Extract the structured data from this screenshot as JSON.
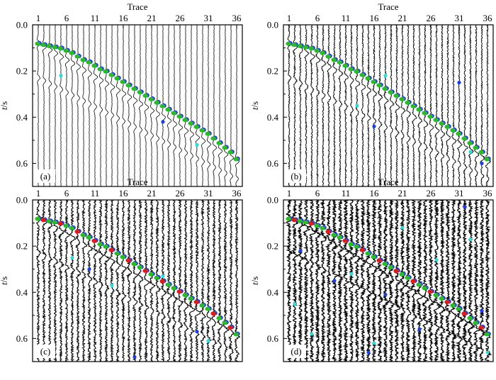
{
  "figure": {
    "panels_count": 4
  },
  "chart_data": [
    {
      "panel": "a",
      "type": "scatter",
      "label": "(a)",
      "xlabel": "Trace",
      "ylabel": "t/s",
      "xticks": [
        1,
        6,
        11,
        16,
        21,
        26,
        31,
        36
      ],
      "yticks": [
        0.0,
        0.2,
        0.4,
        0.6
      ],
      "ytick_labels": [
        "0.0",
        "0.2",
        "0.4",
        "0.6"
      ],
      "xlim": [
        0,
        37
      ],
      "ylim": [
        0.0,
        0.7
      ],
      "y_inverted": true,
      "x_axis_position": "top",
      "traces": 36,
      "noise_level": 0.08,
      "event": {
        "t0": 0.08,
        "slope": 0.0146
      },
      "second_event": {
        "t0": 0.23,
        "slope": 0.0125
      },
      "colors": {
        "trace": "#000000",
        "pick_primary": "#2db82d",
        "pick_secondary": "#1f3fd9",
        "outlier": "#38d7d7",
        "red": "#d62020"
      },
      "series": [
        {
          "name": "picks",
          "points": [
            {
              "x": 1,
              "y": 0.08
            },
            {
              "x": 2,
              "y": 0.085
            },
            {
              "x": 3,
              "y": 0.09
            },
            {
              "x": 4,
              "y": 0.095
            },
            {
              "x": 5,
              "y": 0.1
            },
            {
              "x": 6,
              "y": 0.11
            },
            {
              "x": 7,
              "y": 0.12
            },
            {
              "x": 8,
              "y": 0.135
            },
            {
              "x": 9,
              "y": 0.15
            },
            {
              "x": 10,
              "y": 0.16
            },
            {
              "x": 11,
              "y": 0.175
            },
            {
              "x": 12,
              "y": 0.19
            },
            {
              "x": 13,
              "y": 0.2
            },
            {
              "x": 14,
              "y": 0.215
            },
            {
              "x": 15,
              "y": 0.23
            },
            {
              "x": 16,
              "y": 0.245
            },
            {
              "x": 17,
              "y": 0.26
            },
            {
              "x": 18,
              "y": 0.275
            },
            {
              "x": 19,
              "y": 0.29
            },
            {
              "x": 20,
              "y": 0.305
            },
            {
              "x": 21,
              "y": 0.32
            },
            {
              "x": 22,
              "y": 0.335
            },
            {
              "x": 23,
              "y": 0.35
            },
            {
              "x": 24,
              "y": 0.365
            },
            {
              "x": 25,
              "y": 0.38
            },
            {
              "x": 26,
              "y": 0.395
            },
            {
              "x": 27,
              "y": 0.41
            },
            {
              "x": 28,
              "y": 0.425
            },
            {
              "x": 29,
              "y": 0.44
            },
            {
              "x": 30,
              "y": 0.455
            },
            {
              "x": 31,
              "y": 0.47
            },
            {
              "x": 32,
              "y": 0.49
            },
            {
              "x": 33,
              "y": 0.51
            },
            {
              "x": 34,
              "y": 0.53
            },
            {
              "x": 35,
              "y": 0.55
            },
            {
              "x": 36,
              "y": 0.58
            }
          ]
        },
        {
          "name": "outliers",
          "points": [
            {
              "x": 5,
              "y": 0.22
            },
            {
              "x": 23,
              "y": 0.42
            },
            {
              "x": 29,
              "y": 0.52
            }
          ]
        }
      ]
    },
    {
      "panel": "b",
      "type": "scatter",
      "label": "(b)",
      "xlabel": "Trace",
      "ylabel": "t/s",
      "xticks": [
        1,
        6,
        11,
        16,
        21,
        26,
        31,
        36
      ],
      "yticks": [
        0.0,
        0.2,
        0.4,
        0.6
      ],
      "ytick_labels": [
        "0.0",
        "0.2",
        "0.4",
        "0.6"
      ],
      "xlim": [
        0,
        37
      ],
      "ylim": [
        0.0,
        0.7
      ],
      "y_inverted": true,
      "x_axis_position": "top",
      "traces": 36,
      "noise_level": 0.25,
      "event": {
        "t0": 0.08,
        "slope": 0.0146
      },
      "second_event": {
        "t0": 0.23,
        "slope": 0.0125
      },
      "colors": {
        "trace": "#000000",
        "pick_primary": "#2db82d",
        "pick_secondary": "#1f3fd9",
        "outlier": "#38d7d7",
        "red": "#d62020"
      },
      "series": [
        {
          "name": "picks",
          "points": [
            {
              "x": 1,
              "y": 0.08
            },
            {
              "x": 2,
              "y": 0.085
            },
            {
              "x": 3,
              "y": 0.09
            },
            {
              "x": 4,
              "y": 0.095
            },
            {
              "x": 5,
              "y": 0.1
            },
            {
              "x": 6,
              "y": 0.11
            },
            {
              "x": 7,
              "y": 0.12
            },
            {
              "x": 8,
              "y": 0.135
            },
            {
              "x": 9,
              "y": 0.15
            },
            {
              "x": 10,
              "y": 0.16
            },
            {
              "x": 11,
              "y": 0.175
            },
            {
              "x": 12,
              "y": 0.19
            },
            {
              "x": 13,
              "y": 0.2
            },
            {
              "x": 14,
              "y": 0.215
            },
            {
              "x": 15,
              "y": 0.23
            },
            {
              "x": 16,
              "y": 0.245
            },
            {
              "x": 17,
              "y": 0.26
            },
            {
              "x": 18,
              "y": 0.275
            },
            {
              "x": 19,
              "y": 0.29
            },
            {
              "x": 20,
              "y": 0.305
            },
            {
              "x": 21,
              "y": 0.32
            },
            {
              "x": 22,
              "y": 0.335
            },
            {
              "x": 23,
              "y": 0.35
            },
            {
              "x": 24,
              "y": 0.365
            },
            {
              "x": 25,
              "y": 0.38
            },
            {
              "x": 26,
              "y": 0.395
            },
            {
              "x": 27,
              "y": 0.41
            },
            {
              "x": 28,
              "y": 0.425
            },
            {
              "x": 29,
              "y": 0.44
            },
            {
              "x": 30,
              "y": 0.455
            },
            {
              "x": 31,
              "y": 0.47
            },
            {
              "x": 32,
              "y": 0.49
            },
            {
              "x": 33,
              "y": 0.51
            },
            {
              "x": 34,
              "y": 0.53
            },
            {
              "x": 35,
              "y": 0.55
            },
            {
              "x": 36,
              "y": 0.58
            }
          ]
        },
        {
          "name": "outliers",
          "points": [
            {
              "x": 13,
              "y": 0.35
            },
            {
              "x": 16,
              "y": 0.44
            },
            {
              "x": 18,
              "y": 0.22
            },
            {
              "x": 31,
              "y": 0.25
            },
            {
              "x": 33,
              "y": 0.55
            },
            {
              "x": 35,
              "y": 0.6
            }
          ]
        }
      ]
    },
    {
      "panel": "c",
      "type": "scatter",
      "label": "(c)",
      "xlabel": "Trace",
      "ylabel": "t/s",
      "xticks": [
        1,
        6,
        11,
        16,
        21,
        26,
        31,
        36
      ],
      "yticks": [
        0.0,
        0.2,
        0.4,
        0.6
      ],
      "ytick_labels": [
        "0.0",
        "0.2",
        "0.4",
        "0.6"
      ],
      "xlim": [
        0,
        37
      ],
      "ylim": [
        0.0,
        0.7
      ],
      "y_inverted": true,
      "x_axis_position": "top",
      "traces": 36,
      "noise_level": 0.42,
      "event": {
        "t0": 0.08,
        "slope": 0.0146
      },
      "second_event": {
        "t0": 0.23,
        "slope": 0.0125
      },
      "colors": {
        "trace": "#000000",
        "pick_primary": "#2db82d",
        "pick_secondary": "#1f3fd9",
        "outlier": "#38d7d7",
        "red": "#d62020"
      },
      "series": [
        {
          "name": "picks",
          "points": [
            {
              "x": 1,
              "y": 0.08
            },
            {
              "x": 2,
              "y": 0.085
            },
            {
              "x": 3,
              "y": 0.09
            },
            {
              "x": 4,
              "y": 0.095
            },
            {
              "x": 5,
              "y": 0.1
            },
            {
              "x": 6,
              "y": 0.11
            },
            {
              "x": 7,
              "y": 0.12
            },
            {
              "x": 8,
              "y": 0.135
            },
            {
              "x": 9,
              "y": 0.15
            },
            {
              "x": 10,
              "y": 0.16
            },
            {
              "x": 11,
              "y": 0.175
            },
            {
              "x": 12,
              "y": 0.19
            },
            {
              "x": 13,
              "y": 0.2
            },
            {
              "x": 14,
              "y": 0.215
            },
            {
              "x": 15,
              "y": 0.23
            },
            {
              "x": 16,
              "y": 0.245
            },
            {
              "x": 17,
              "y": 0.26
            },
            {
              "x": 18,
              "y": 0.275
            },
            {
              "x": 19,
              "y": 0.29
            },
            {
              "x": 20,
              "y": 0.305
            },
            {
              "x": 21,
              "y": 0.32
            },
            {
              "x": 22,
              "y": 0.335
            },
            {
              "x": 23,
              "y": 0.35
            },
            {
              "x": 24,
              "y": 0.365
            },
            {
              "x": 25,
              "y": 0.38
            },
            {
              "x": 26,
              "y": 0.395
            },
            {
              "x": 27,
              "y": 0.41
            },
            {
              "x": 28,
              "y": 0.425
            },
            {
              "x": 29,
              "y": 0.44
            },
            {
              "x": 30,
              "y": 0.455
            },
            {
              "x": 31,
              "y": 0.47
            },
            {
              "x": 32,
              "y": 0.49
            },
            {
              "x": 33,
              "y": 0.51
            },
            {
              "x": 34,
              "y": 0.53
            },
            {
              "x": 35,
              "y": 0.55
            },
            {
              "x": 36,
              "y": 0.58
            }
          ]
        },
        {
          "name": "outliers",
          "points": [
            {
              "x": 7,
              "y": 0.25
            },
            {
              "x": 10,
              "y": 0.3
            },
            {
              "x": 14,
              "y": 0.37
            },
            {
              "x": 18,
              "y": 0.68
            },
            {
              "x": 23,
              "y": 0.33
            },
            {
              "x": 29,
              "y": 0.57
            },
            {
              "x": 31,
              "y": 0.61
            }
          ]
        }
      ]
    },
    {
      "panel": "d",
      "type": "scatter",
      "label": "(d)",
      "xlabel": "Trace",
      "ylabel": "t/s",
      "xticks": [
        1,
        6,
        11,
        16,
        21,
        26,
        31,
        36
      ],
      "yticks": [
        0.0,
        0.2,
        0.4,
        0.6
      ],
      "ytick_labels": [
        "0.0",
        "0.2",
        "0.4",
        "0.6"
      ],
      "xlim": [
        0,
        37
      ],
      "ylim": [
        0.0,
        0.7
      ],
      "y_inverted": true,
      "x_axis_position": "top",
      "traces": 36,
      "noise_level": 0.62,
      "event": {
        "t0": 0.08,
        "slope": 0.0146
      },
      "second_event": {
        "t0": 0.23,
        "slope": 0.0125
      },
      "colors": {
        "trace": "#000000",
        "pick_primary": "#2db82d",
        "pick_secondary": "#1f3fd9",
        "outlier": "#38d7d7",
        "red": "#d62020"
      },
      "series": [
        {
          "name": "picks",
          "points": [
            {
              "x": 1,
              "y": 0.08
            },
            {
              "x": 2,
              "y": 0.085
            },
            {
              "x": 3,
              "y": 0.09
            },
            {
              "x": 4,
              "y": 0.095
            },
            {
              "x": 5,
              "y": 0.1
            },
            {
              "x": 6,
              "y": 0.11
            },
            {
              "x": 7,
              "y": 0.12
            },
            {
              "x": 8,
              "y": 0.135
            },
            {
              "x": 9,
              "y": 0.15
            },
            {
              "x": 10,
              "y": 0.16
            },
            {
              "x": 11,
              "y": 0.175
            },
            {
              "x": 12,
              "y": 0.19
            },
            {
              "x": 13,
              "y": 0.2
            },
            {
              "x": 14,
              "y": 0.215
            },
            {
              "x": 15,
              "y": 0.23
            },
            {
              "x": 16,
              "y": 0.245
            },
            {
              "x": 17,
              "y": 0.26
            },
            {
              "x": 18,
              "y": 0.275
            },
            {
              "x": 19,
              "y": 0.29
            },
            {
              "x": 20,
              "y": 0.305
            },
            {
              "x": 21,
              "y": 0.32
            },
            {
              "x": 22,
              "y": 0.335
            },
            {
              "x": 23,
              "y": 0.35
            },
            {
              "x": 24,
              "y": 0.365
            },
            {
              "x": 25,
              "y": 0.38
            },
            {
              "x": 26,
              "y": 0.395
            },
            {
              "x": 27,
              "y": 0.41
            },
            {
              "x": 28,
              "y": 0.425
            },
            {
              "x": 29,
              "y": 0.44
            },
            {
              "x": 30,
              "y": 0.455
            },
            {
              "x": 31,
              "y": 0.47
            },
            {
              "x": 32,
              "y": 0.49
            },
            {
              "x": 33,
              "y": 0.51
            },
            {
              "x": 34,
              "y": 0.53
            },
            {
              "x": 35,
              "y": 0.55
            },
            {
              "x": 36,
              "y": 0.58
            }
          ]
        },
        {
          "name": "outliers",
          "points": [
            {
              "x": 2,
              "y": 0.45
            },
            {
              "x": 3,
              "y": 0.22
            },
            {
              "x": 5,
              "y": 0.58
            },
            {
              "x": 9,
              "y": 0.35
            },
            {
              "x": 12,
              "y": 0.32
            },
            {
              "x": 15,
              "y": 0.66
            },
            {
              "x": 16,
              "y": 0.62
            },
            {
              "x": 18,
              "y": 0.41
            },
            {
              "x": 21,
              "y": 0.12
            },
            {
              "x": 24,
              "y": 0.56
            },
            {
              "x": 27,
              "y": 0.26
            },
            {
              "x": 32,
              "y": 0.03
            },
            {
              "x": 33,
              "y": 0.17
            },
            {
              "x": 35,
              "y": 0.48
            },
            {
              "x": 36,
              "y": 0.66
            }
          ]
        }
      ]
    }
  ]
}
